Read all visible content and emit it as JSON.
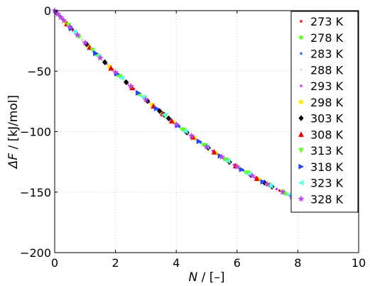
{
  "chart_data": {
    "type": "scatter",
    "xlabel_var": "N",
    "xlabel_unit": " / [–]",
    "ylabel_var": "ΔF",
    "ylabel_unit": " / [kJ/mol]",
    "xlim": [
      0,
      10
    ],
    "ylim": [
      -200,
      0
    ],
    "xticks": [
      0,
      2,
      4,
      6,
      8,
      10
    ],
    "yticks": [
      0,
      -50,
      -100,
      -150,
      -200
    ],
    "xtick_labels": [
      "0",
      "2",
      "4",
      "6",
      "8",
      "10"
    ],
    "ytick_labels": [
      "0",
      "−50",
      "−100",
      "−150",
      "−200"
    ],
    "grid": true,
    "legend_position": "top-right",
    "series": [
      {
        "name": "273 K",
        "color": "#ff0000",
        "marker": "dot",
        "x": [
          0.1,
          0.6,
          1.2,
          1.9,
          2.6,
          3.3,
          4.0,
          4.7,
          5.4,
          6.1,
          6.8,
          7.4
        ]
      },
      {
        "name": "278 K",
        "color": "#66ff33",
        "marker": "circle",
        "x": [
          0.2,
          0.8,
          1.4,
          2.1,
          2.8,
          3.5,
          4.2,
          4.9,
          5.6,
          6.3,
          7.0,
          7.6
        ]
      },
      {
        "name": "283 K",
        "color": "#3366ff",
        "marker": "dot",
        "x": [
          0.15,
          0.7,
          1.3,
          2.0,
          2.7,
          3.4,
          4.1,
          4.8,
          5.5,
          6.2,
          6.9
        ]
      },
      {
        "name": "288 K",
        "color": "#dddddd",
        "marker": "dot",
        "x": [
          0.3,
          0.9,
          1.6,
          2.3,
          3.0,
          3.7,
          4.4,
          5.1,
          5.8,
          6.5
        ]
      },
      {
        "name": "293 K",
        "color": "#cc33ff",
        "marker": "dot",
        "x": [
          0.25,
          1.0,
          1.7,
          2.4,
          3.1,
          3.8,
          4.5,
          5.2,
          5.9,
          6.6,
          7.3
        ]
      },
      {
        "name": "298 K",
        "color": "#ffee00",
        "marker": "square",
        "x": [
          0.35,
          1.1,
          1.8,
          2.5,
          3.2,
          3.9,
          4.6,
          5.3,
          6.0,
          6.7
        ]
      },
      {
        "name": "303 K",
        "color": "#000000",
        "marker": "diamond",
        "x": [
          0.05,
          0.5,
          1.05,
          1.65,
          2.35,
          3.05,
          3.45,
          3.6,
          3.75,
          4.35,
          5.05,
          5.75,
          6.45,
          6.9,
          7.15
        ]
      },
      {
        "name": "308 K",
        "color": "#ee0000",
        "marker": "triangle-up",
        "x": [
          0.4,
          1.15,
          1.85,
          2.55,
          3.25,
          3.55,
          3.85,
          4.55,
          5.25,
          5.95,
          6.65
        ]
      },
      {
        "name": "313 K",
        "color": "#66ff33",
        "marker": "triangle-down",
        "x": [
          0.45,
          1.25,
          2.15,
          2.95,
          3.65,
          4.25,
          4.95,
          5.65,
          6.35,
          7.05,
          7.5
        ]
      },
      {
        "name": "318 K",
        "color": "#2244ff",
        "marker": "triangle-right",
        "x": [
          0.55,
          1.35,
          2.05,
          2.75,
          3.35,
          4.05,
          4.75,
          5.45,
          6.15,
          6.85
        ]
      },
      {
        "name": "323 K",
        "color": "#55ffee",
        "marker": "triangle-left",
        "x": [
          0.65,
          1.45,
          2.2,
          2.9,
          3.6,
          4.3,
          5.0,
          5.7,
          6.4,
          7.1,
          7.7
        ]
      },
      {
        "name": "328 K",
        "color": "#bb44ee",
        "marker": "star",
        "x": [
          0.0,
          0.1,
          0.2,
          0.3,
          0.5,
          0.75,
          1.0,
          1.5,
          2.0,
          2.5,
          3.0,
          4.0,
          4.5,
          5.0,
          5.5,
          6.0,
          6.5,
          7.0,
          7.5,
          7.8
        ]
      }
    ]
  }
}
